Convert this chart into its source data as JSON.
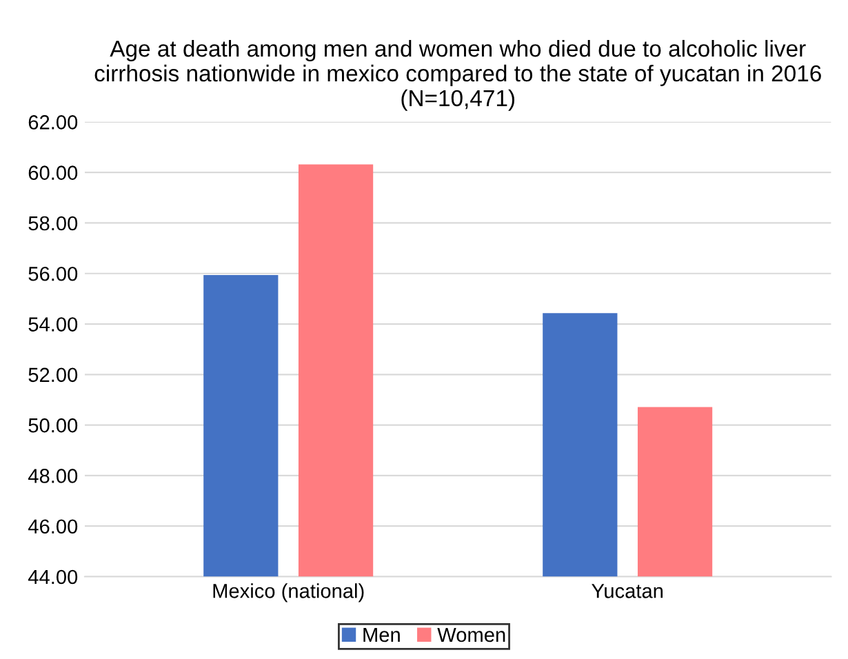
{
  "chart_data": {
    "type": "bar",
    "title": "Age at death among men and women who died due to alcoholic liver cirrhosis nationwide in mexico compared to the state of yucatan in 2016 (N=10,471)",
    "categories": [
      "Mexico (national)",
      "Yucatan"
    ],
    "series": [
      {
        "name": "Men",
        "color": "#4472c4",
        "values": [
          55.94,
          54.43
        ]
      },
      {
        "name": "Women",
        "color": "#ff7c80",
        "values": [
          60.32,
          50.71
        ]
      }
    ],
    "ylim": [
      44,
      62
    ],
    "yticks": [
      {
        "value": 44,
        "label": "44.00"
      },
      {
        "value": 46,
        "label": "46.00"
      },
      {
        "value": 48,
        "label": "48.00"
      },
      {
        "value": 50,
        "label": "50.00"
      },
      {
        "value": 52,
        "label": "52.00"
      },
      {
        "value": 54,
        "label": "54.00"
      },
      {
        "value": 56,
        "label": "56.00"
      },
      {
        "value": 58,
        "label": "58.00"
      },
      {
        "value": 60,
        "label": "60.00"
      },
      {
        "value": 62,
        "label": "62.00"
      }
    ],
    "grid": "y",
    "legend": "bottom"
  }
}
